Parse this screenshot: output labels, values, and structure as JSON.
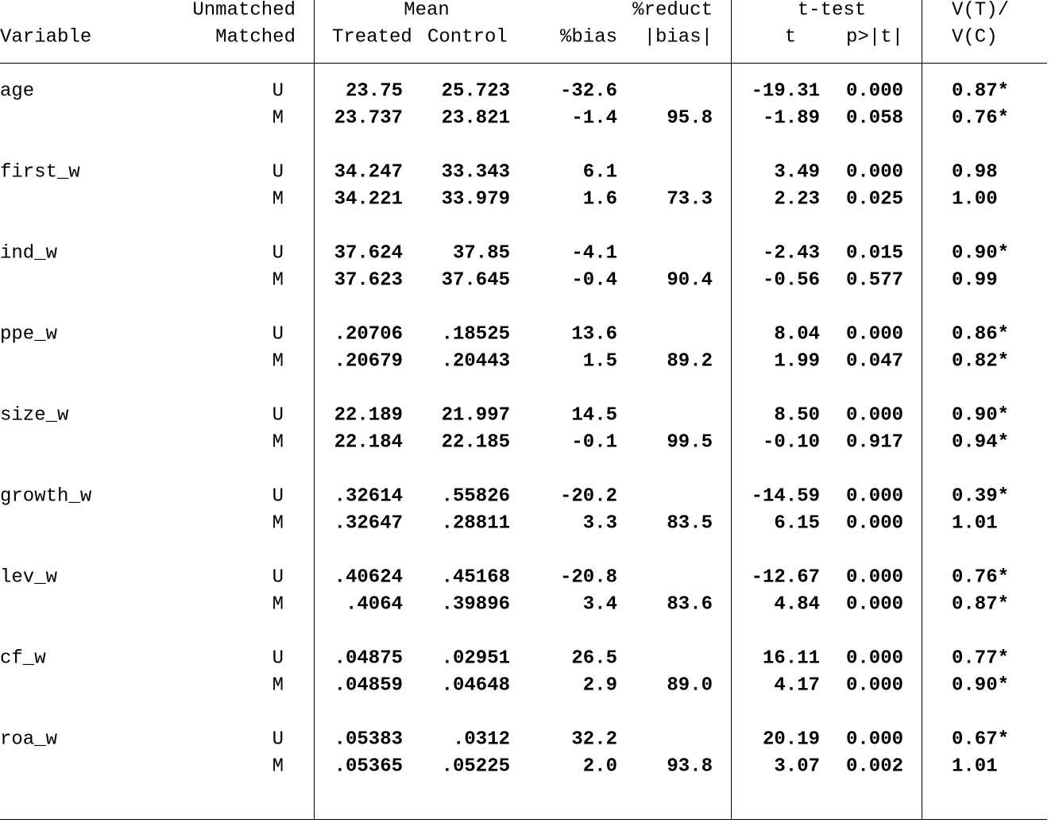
{
  "header": {
    "unmatched": "Unmatched",
    "variable": "Variable",
    "matched": "Matched",
    "mean": "Mean",
    "treated": "Treated",
    "control": "Control",
    "bias": "%bias",
    "reduct": "%reduct",
    "abs_bias": "|bias|",
    "ttest": "t-test",
    "t": "t",
    "p": "p>|t|",
    "vratio_top": "V(T)/",
    "vratio_bottom": "V(C)"
  },
  "table": {
    "groups": [
      {
        "variable": "age",
        "rows": [
          {
            "sample": "U",
            "treated": "23.75",
            "control": "25.723",
            "bias": "-32.6",
            "t": "-19.31",
            "p": "0.000",
            "v": "0.87*"
          },
          {
            "sample": "M",
            "treated": "23.737",
            "control": "23.821",
            "bias": "-1.4",
            "reduct": "95.8",
            "t": "-1.89",
            "p": "0.058",
            "v": "0.76*"
          }
        ]
      },
      {
        "variable": "first_w",
        "rows": [
          {
            "sample": "U",
            "treated": "34.247",
            "control": "33.343",
            "bias": "6.1",
            "t": "3.49",
            "p": "0.000",
            "v": "0.98"
          },
          {
            "sample": "M",
            "treated": "34.221",
            "control": "33.979",
            "bias": "1.6",
            "reduct": "73.3",
            "t": "2.23",
            "p": "0.025",
            "v": "1.00"
          }
        ]
      },
      {
        "variable": "ind_w",
        "rows": [
          {
            "sample": "U",
            "treated": "37.624",
            "control": "37.85",
            "bias": "-4.1",
            "t": "-2.43",
            "p": "0.015",
            "v": "0.90*"
          },
          {
            "sample": "M",
            "treated": "37.623",
            "control": "37.645",
            "bias": "-0.4",
            "reduct": "90.4",
            "t": "-0.56",
            "p": "0.577",
            "v": "0.99"
          }
        ]
      },
      {
        "variable": "ppe_w",
        "rows": [
          {
            "sample": "U",
            "treated": ".20706",
            "control": ".18525",
            "bias": "13.6",
            "t": "8.04",
            "p": "0.000",
            "v": "0.86*"
          },
          {
            "sample": "M",
            "treated": ".20679",
            "control": ".20443",
            "bias": "1.5",
            "reduct": "89.2",
            "t": "1.99",
            "p": "0.047",
            "v": "0.82*"
          }
        ]
      },
      {
        "variable": "size_w",
        "rows": [
          {
            "sample": "U",
            "treated": "22.189",
            "control": "21.997",
            "bias": "14.5",
            "t": "8.50",
            "p": "0.000",
            "v": "0.90*"
          },
          {
            "sample": "M",
            "treated": "22.184",
            "control": "22.185",
            "bias": "-0.1",
            "reduct": "99.5",
            "t": "-0.10",
            "p": "0.917",
            "v": "0.94*"
          }
        ]
      },
      {
        "variable": "growth_w",
        "rows": [
          {
            "sample": "U",
            "treated": ".32614",
            "control": ".55826",
            "bias": "-20.2",
            "t": "-14.59",
            "p": "0.000",
            "v": "0.39*"
          },
          {
            "sample": "M",
            "treated": ".32647",
            "control": ".28811",
            "bias": "3.3",
            "reduct": "83.5",
            "t": "6.15",
            "p": "0.000",
            "v": "1.01"
          }
        ]
      },
      {
        "variable": "lev_w",
        "rows": [
          {
            "sample": "U",
            "treated": ".40624",
            "control": ".45168",
            "bias": "-20.8",
            "t": "-12.67",
            "p": "0.000",
            "v": "0.76*"
          },
          {
            "sample": "M",
            "treated": ".4064",
            "control": ".39896",
            "bias": "3.4",
            "reduct": "83.6",
            "t": "4.84",
            "p": "0.000",
            "v": "0.87*"
          }
        ]
      },
      {
        "variable": "cf_w",
        "rows": [
          {
            "sample": "U",
            "treated": ".04875",
            "control": ".02951",
            "bias": "26.5",
            "t": "16.11",
            "p": "0.000",
            "v": "0.77*"
          },
          {
            "sample": "M",
            "treated": ".04859",
            "control": ".04648",
            "bias": "2.9",
            "reduct": "89.0",
            "t": "4.17",
            "p": "0.000",
            "v": "0.90*"
          }
        ]
      },
      {
        "variable": "roa_w",
        "rows": [
          {
            "sample": "U",
            "treated": ".05383",
            "control": ".0312",
            "bias": "32.2",
            "t": "20.19",
            "p": "0.000",
            "v": "0.67*"
          },
          {
            "sample": "M",
            "treated": ".05365",
            "control": ".05225",
            "bias": "2.0",
            "reduct": "93.8",
            "t": "3.07",
            "p": "0.002",
            "v": "1.01"
          }
        ]
      }
    ]
  }
}
